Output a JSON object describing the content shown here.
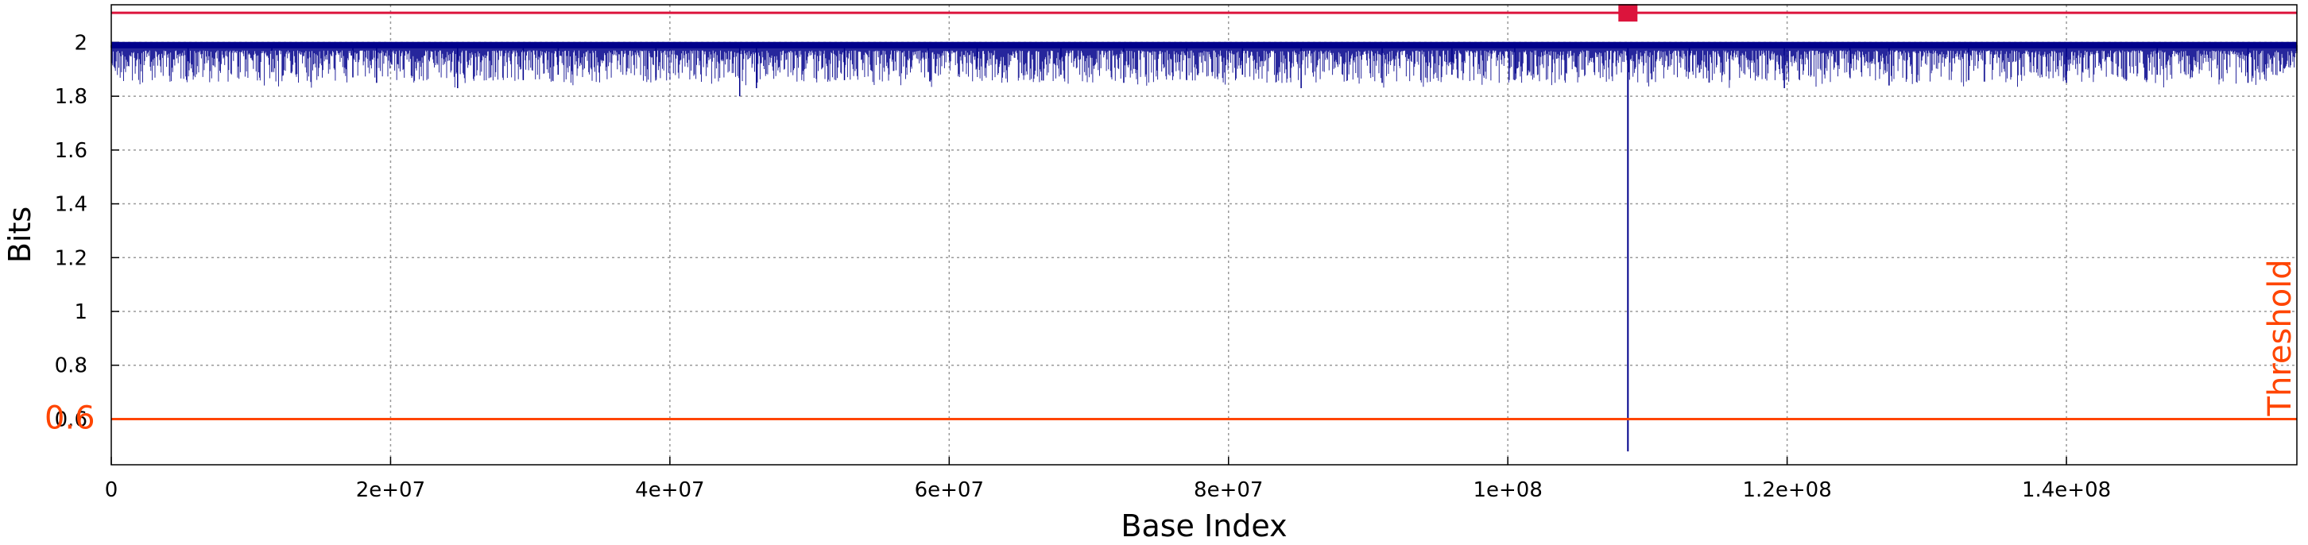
{
  "chart_data": {
    "type": "line",
    "xlabel": "Base Index",
    "ylabel": "Bits",
    "xlim": [
      0,
      156500000
    ],
    "ylim": [
      0.43,
      2.14
    ],
    "grid": true,
    "x_ticks": [
      {
        "value": 0,
        "label": "0"
      },
      {
        "value": 20000000,
        "label": "2e+07"
      },
      {
        "value": 40000000,
        "label": "4e+07"
      },
      {
        "value": 60000000,
        "label": "6e+07"
      },
      {
        "value": 80000000,
        "label": "8e+07"
      },
      {
        "value": 100000000,
        "label": "1e+08"
      },
      {
        "value": 120000000,
        "label": "1.2e+08"
      },
      {
        "value": 140000000,
        "label": "1.4e+08"
      }
    ],
    "y_ticks": [
      {
        "value": 0.6,
        "label": "0.6"
      },
      {
        "value": 0.8,
        "label": "0.8"
      },
      {
        "value": 1.0,
        "label": "1"
      },
      {
        "value": 1.2,
        "label": "1.2"
      },
      {
        "value": 1.4,
        "label": "1.4"
      },
      {
        "value": 1.6,
        "label": "1.6"
      },
      {
        "value": 1.8,
        "label": "1.8"
      },
      {
        "value": 2.0,
        "label": "2"
      }
    ],
    "series": [
      {
        "color": "#00008b",
        "baseline": 1.99,
        "typical_min": 1.87,
        "points": [
          [
            0,
            1.98
          ],
          [
            5500000,
            1.93
          ],
          [
            11500000,
            1.89
          ],
          [
            17300000,
            1.87
          ],
          [
            19000000,
            1.85
          ],
          [
            24800000,
            1.83
          ],
          [
            29500000,
            1.86
          ],
          [
            32000000,
            1.88
          ],
          [
            39000000,
            1.87
          ],
          [
            45000000,
            1.8
          ],
          [
            46200000,
            1.83
          ],
          [
            52500000,
            1.86
          ],
          [
            58500000,
            1.89
          ],
          [
            62000000,
            1.91
          ],
          [
            68000000,
            1.88
          ],
          [
            72500000,
            1.85
          ],
          [
            77000000,
            1.86
          ],
          [
            81000000,
            1.88
          ],
          [
            85200000,
            1.83
          ],
          [
            91000000,
            1.85
          ],
          [
            96000000,
            1.88
          ],
          [
            100500000,
            1.86
          ],
          [
            108600000,
            0.48
          ],
          [
            113000000,
            1.89
          ],
          [
            119800000,
            1.83
          ],
          [
            124500000,
            1.87
          ],
          [
            127300000,
            1.84
          ],
          [
            133000000,
            1.86
          ],
          [
            140000000,
            1.85
          ],
          [
            146500000,
            1.88
          ],
          [
            153000000,
            1.85
          ],
          [
            156500000,
            1.96
          ]
        ]
      }
    ],
    "threshold": {
      "value": 0.6,
      "value_label": "0.6",
      "label": "Threshold",
      "color": "#ff4500"
    },
    "top_line": {
      "value": 2.11,
      "color": "#dc143c"
    },
    "marker": {
      "x": 108600000,
      "y": 2.11,
      "color": "#dc143c"
    }
  }
}
